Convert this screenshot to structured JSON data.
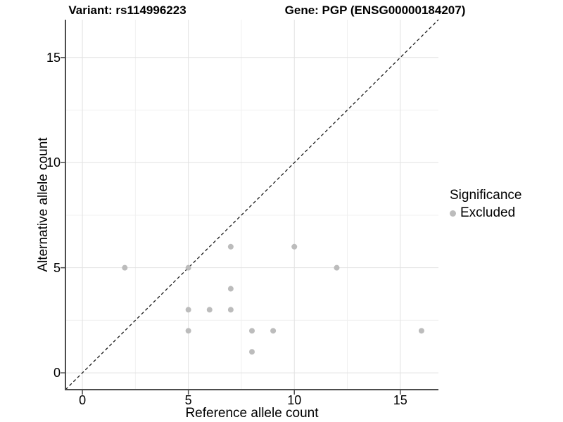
{
  "titles": {
    "left": "Variant: rs114996223",
    "right": "Gene: PGP (ENSG00000184207)"
  },
  "legend": {
    "title": "Significance",
    "items": [
      {
        "label": "Excluded",
        "color": "#bcbcbc"
      }
    ]
  },
  "colors": {
    "point": "#bcbcbc",
    "grid_major": "#e2e2e2",
    "grid_minor": "#f0f0f0",
    "axis_line": "#4d4d4d",
    "identity_line": "#1a1a1a",
    "background": "#ffffff"
  },
  "chart_data": {
    "type": "scatter",
    "title": "Variant: rs114996223 — Gene: PGP (ENSG00000184207)",
    "xlabel": "Reference allele count",
    "ylabel": "Alternative allele count",
    "xlim": [
      -0.8,
      16.8
    ],
    "ylim": [
      -0.8,
      16.8
    ],
    "x_major_ticks": [
      0,
      5,
      10,
      15
    ],
    "y_major_ticks": [
      0,
      5,
      10,
      15
    ],
    "x_minor_ticks": [
      2.5,
      7.5,
      12.5
    ],
    "y_minor_ticks": [
      2.5,
      7.5,
      12.5
    ],
    "grid": true,
    "legend_position": "right",
    "identity_line": {
      "slope": 1,
      "intercept": 0,
      "style": "dashed"
    },
    "series": [
      {
        "name": "Excluded",
        "color": "#bcbcbc",
        "points": [
          [
            2,
            5
          ],
          [
            5,
            2
          ],
          [
            5,
            3
          ],
          [
            5,
            5
          ],
          [
            6,
            3
          ],
          [
            7,
            3
          ],
          [
            7,
            4
          ],
          [
            7,
            6
          ],
          [
            8,
            1
          ],
          [
            8,
            2
          ],
          [
            9,
            2
          ],
          [
            10,
            6
          ],
          [
            12,
            5
          ],
          [
            16,
            2
          ]
        ]
      }
    ]
  }
}
